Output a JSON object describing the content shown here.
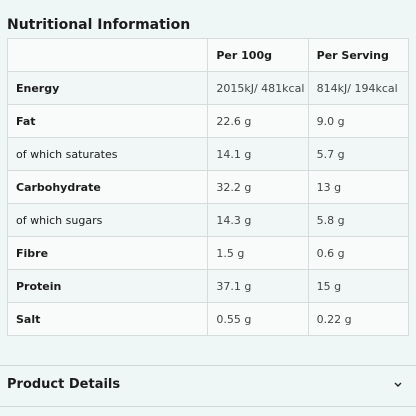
{
  "title": "Nutritional Information",
  "table": {
    "header": [
      "Per 100g",
      "Per Serving"
    ],
    "rows": [
      [
        "Energy",
        "2015kJ/ 481kcal",
        "814kJ/ 194kcal"
      ],
      [
        "Fat",
        "22.6 g",
        "9.0 g"
      ],
      [
        "of which saturates",
        "14.1 g",
        "5.7 g"
      ],
      [
        "Carbohydrate",
        "32.2 g",
        "13 g"
      ],
      [
        "of which sugars",
        "14.3 g",
        "5.8 g"
      ],
      [
        "Fibre",
        "1.5 g",
        "0.6 g"
      ],
      [
        "Protein",
        "37.1 g",
        "15 g"
      ],
      [
        "Salt",
        "0.55 g",
        "0.22 g"
      ]
    ]
  },
  "details": {
    "title": "Product Details"
  }
}
